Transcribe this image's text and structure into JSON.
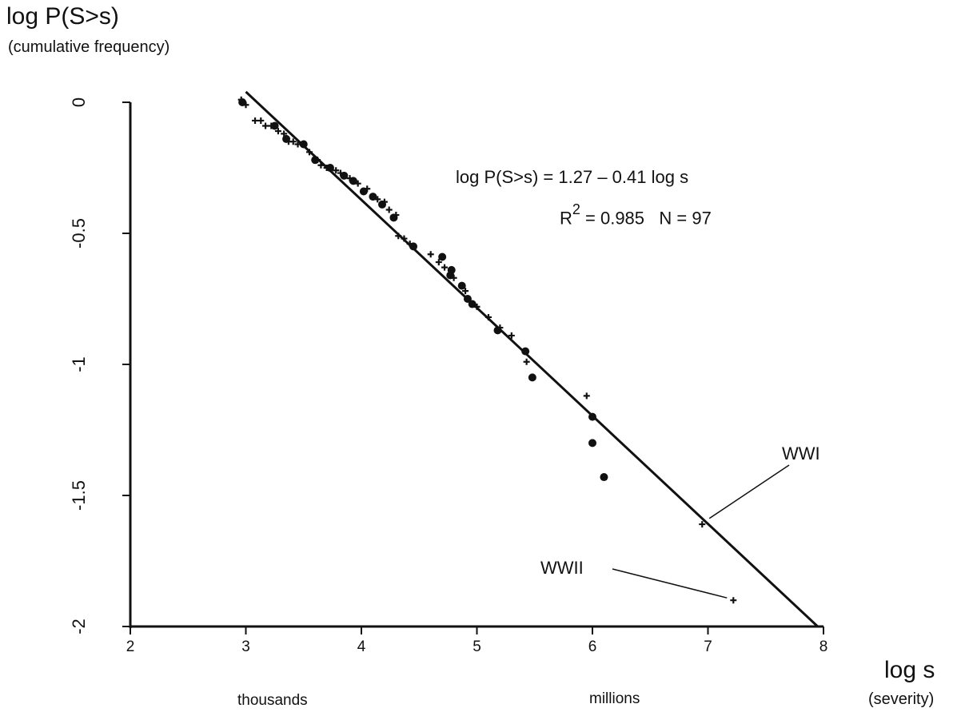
{
  "chart_data": {
    "type": "scatter",
    "ylabel": "log P(S>s)",
    "ylabel_sub": "(cumulative frequency)",
    "xlabel": "log s",
    "xlabel_sub": "(severity)",
    "xlim": [
      2,
      8
    ],
    "ylim": [
      -2,
      0
    ],
    "x_ticks": [
      2,
      3,
      4,
      5,
      6,
      7,
      8
    ],
    "x_tick_labels": [
      "2",
      "3",
      "4",
      "5",
      "6",
      "7",
      "8"
    ],
    "y_ticks": [
      0,
      -0.5,
      -1,
      -1.5,
      -2
    ],
    "y_tick_labels": [
      "0",
      "-0.5",
      "-1",
      "-1.5",
      "-2"
    ],
    "x_tick_notes": [
      {
        "text": "thousands",
        "x": 3
      },
      {
        "text": "millions",
        "x": 6
      }
    ],
    "fit_line": {
      "intercept": 1.27,
      "slope": -0.41,
      "x_range": [
        3.0,
        7.95
      ],
      "y_range": [
        0.04,
        -2.0
      ]
    },
    "equation": "log P(S>s) = 1.27 – 0.41 log s",
    "r2_text": "R",
    "r2_sup": "2",
    "r2_value": " = 0.985",
    "n_text": "N = 97",
    "annotations": [
      {
        "text": "WWI",
        "point_x": 6.97,
        "point_y": -1.6
      },
      {
        "text": "WWII",
        "point_x": 7.22,
        "point_y": -1.9
      }
    ],
    "grid": false,
    "points_dot": [
      [
        2.97,
        0.0
      ],
      [
        3.25,
        -0.09
      ],
      [
        3.35,
        -0.14
      ],
      [
        3.5,
        -0.16
      ],
      [
        3.6,
        -0.22
      ],
      [
        3.73,
        -0.25
      ],
      [
        3.85,
        -0.28
      ],
      [
        3.93,
        -0.3
      ],
      [
        4.02,
        -0.34
      ],
      [
        4.1,
        -0.36
      ],
      [
        4.18,
        -0.39
      ],
      [
        4.28,
        -0.44
      ],
      [
        4.45,
        -0.55
      ],
      [
        4.7,
        -0.59
      ],
      [
        4.78,
        -0.64
      ],
      [
        4.77,
        -0.66
      ],
      [
        4.87,
        -0.7
      ],
      [
        4.92,
        -0.75
      ],
      [
        4.96,
        -0.77
      ],
      [
        5.18,
        -0.87
      ],
      [
        5.42,
        -0.95
      ],
      [
        5.48,
        -1.05
      ],
      [
        6.0,
        -1.2
      ],
      [
        6.0,
        -1.3
      ],
      [
        6.1,
        -1.43
      ]
    ],
    "points_plus": [
      [
        2.96,
        0.01
      ],
      [
        3.0,
        -0.01
      ],
      [
        3.08,
        -0.07
      ],
      [
        3.13,
        -0.07
      ],
      [
        3.17,
        -0.09
      ],
      [
        3.22,
        -0.09
      ],
      [
        3.28,
        -0.11
      ],
      [
        3.33,
        -0.12
      ],
      [
        3.37,
        -0.15
      ],
      [
        3.41,
        -0.15
      ],
      [
        3.45,
        -0.16
      ],
      [
        3.55,
        -0.19
      ],
      [
        3.62,
        -0.22
      ],
      [
        3.65,
        -0.24
      ],
      [
        3.7,
        -0.25
      ],
      [
        3.78,
        -0.26
      ],
      [
        3.82,
        -0.27
      ],
      [
        3.9,
        -0.29
      ],
      [
        3.97,
        -0.31
      ],
      [
        4.05,
        -0.33
      ],
      [
        4.14,
        -0.37
      ],
      [
        4.2,
        -0.38
      ],
      [
        4.24,
        -0.41
      ],
      [
        4.3,
        -0.43
      ],
      [
        4.32,
        -0.51
      ],
      [
        4.37,
        -0.52
      ],
      [
        4.42,
        -0.54
      ],
      [
        4.6,
        -0.58
      ],
      [
        4.67,
        -0.61
      ],
      [
        4.72,
        -0.63
      ],
      [
        4.8,
        -0.67
      ],
      [
        4.9,
        -0.72
      ],
      [
        5.0,
        -0.78
      ],
      [
        5.1,
        -0.82
      ],
      [
        5.2,
        -0.86
      ],
      [
        5.3,
        -0.89
      ],
      [
        5.43,
        -0.99
      ],
      [
        5.95,
        -1.12
      ],
      [
        6.95,
        -1.61
      ],
      [
        7.22,
        -1.9
      ]
    ]
  },
  "labels": {
    "ylabel_main": "log P(S>s)",
    "ylabel_sub": "(cumulative frequency)",
    "xlabel_main": "log s",
    "xlabel_sub": "(severity)",
    "eq": "log P(S>s) = 1.27 – 0.41 log s",
    "r": "R",
    "r_sup": "2",
    "r_val": " = 0.985",
    "n": "N = 97",
    "wwi": "WWI",
    "wwii": "WWII",
    "thousands": "thousands",
    "millions": "millions"
  }
}
